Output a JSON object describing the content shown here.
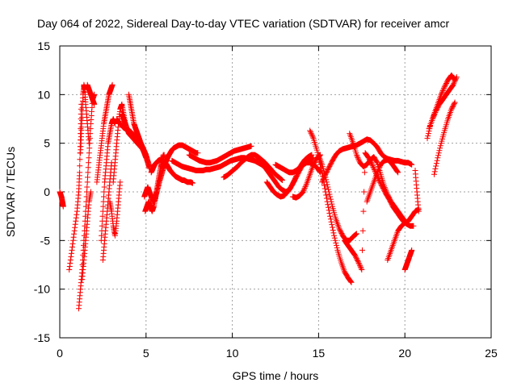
{
  "chart_data": {
    "type": "scatter",
    "title": "Day 064 of 2022, Sidereal Day-to-day VTEC variation (SDTVAR) for receiver amcr",
    "xlabel": "GPS time / hours",
    "ylabel": "SDTVAR / TECUs",
    "xlim": [
      0,
      25
    ],
    "ylim": [
      -15,
      15
    ],
    "xticks": [
      0,
      5,
      10,
      15,
      20,
      25
    ],
    "yticks": [
      -15,
      -10,
      -5,
      0,
      5,
      10,
      15
    ],
    "xtick_labels": [
      "0",
      "5",
      "10",
      "15",
      "20",
      "25"
    ],
    "ytick_labels": [
      "-15",
      "-10",
      "-5",
      "0",
      "5",
      "10",
      "15"
    ],
    "grid": true,
    "legend": "none",
    "marker": "+",
    "color": "#ff0000",
    "series": [
      {
        "name": "s01",
        "x": [
          0.0,
          0.1,
          0.15,
          0.2
        ],
        "y": [
          0.0,
          -0.5,
          -1.0,
          -1.5
        ]
      },
      {
        "name": "s02",
        "x": [
          0.55,
          0.7,
          0.85,
          1.0,
          1.1,
          1.15,
          1.2,
          1.25
        ],
        "y": [
          -8.0,
          -6.0,
          -4.0,
          -2.0,
          0.0,
          2.0,
          6.0,
          9.0
        ]
      },
      {
        "name": "s03",
        "x": [
          1.1,
          1.2,
          1.3,
          1.4,
          1.5,
          1.6,
          1.7,
          1.8,
          1.9,
          2.0
        ],
        "y": [
          -12.0,
          -10.0,
          -8.0,
          -5.0,
          -2.0,
          1.0,
          4.0,
          7.0,
          9.5,
          10.0
        ]
      },
      {
        "name": "s04",
        "x": [
          1.2,
          1.25,
          1.3,
          1.35,
          1.4,
          1.45,
          1.5,
          1.6,
          1.7
        ],
        "y": [
          4.0,
          6.0,
          8.0,
          10.0,
          11.0,
          10.5,
          9.0,
          7.0,
          5.0
        ]
      },
      {
        "name": "s05",
        "x": [
          1.3,
          1.4,
          1.5,
          1.6,
          1.7,
          1.8
        ],
        "y": [
          -9.0,
          -7.0,
          -5.0,
          -3.0,
          -1.0,
          0.0
        ]
      },
      {
        "name": "s06",
        "x": [
          1.6,
          1.7,
          1.8,
          1.9,
          2.0
        ],
        "y": [
          11.0,
          10.5,
          10.0,
          9.5,
          9.0
        ]
      },
      {
        "name": "s07",
        "x": [
          2.15,
          2.25,
          2.35,
          2.45,
          2.55,
          2.65,
          2.75,
          2.85,
          2.95,
          3.05
        ],
        "y": [
          1.0,
          2.5,
          4.0,
          5.5,
          7.0,
          8.0,
          9.0,
          10.0,
          10.5,
          11.0
        ]
      },
      {
        "name": "s08",
        "x": [
          2.4,
          2.5,
          2.6,
          2.7,
          2.8,
          2.9,
          3.0,
          3.1,
          3.2
        ],
        "y": [
          -5.0,
          -2.0,
          1.0,
          3.0,
          5.0,
          6.0,
          7.0,
          7.5,
          7.0
        ]
      },
      {
        "name": "s09",
        "x": [
          2.5,
          2.6,
          2.7,
          2.8,
          2.9,
          3.0
        ],
        "y": [
          -7.0,
          -5.0,
          -3.0,
          -1.0,
          1.0,
          3.0
        ]
      },
      {
        "name": "s10",
        "x": [
          2.9,
          3.0,
          3.1,
          3.2,
          3.3,
          3.4,
          3.5
        ],
        "y": [
          -1.0,
          -2.0,
          -3.5,
          -4.5,
          -3.0,
          -1.0,
          1.0
        ]
      },
      {
        "name": "s11",
        "x": [
          3.1,
          3.2,
          3.3,
          3.4,
          3.5,
          3.6,
          3.7,
          3.8
        ],
        "y": [
          1.0,
          3.0,
          5.0,
          7.0,
          8.5,
          9.0,
          8.0,
          7.0
        ]
      },
      {
        "name": "s12",
        "x": [
          3.3,
          3.4,
          3.5,
          3.6,
          3.7,
          3.8,
          3.9,
          4.0,
          4.1,
          4.2,
          4.3,
          4.4,
          4.5,
          4.6,
          4.7,
          4.8,
          4.9,
          5.0,
          5.1,
          5.2
        ],
        "y": [
          7.5,
          7.2,
          7.0,
          6.8,
          6.6,
          6.5,
          6.4,
          6.3,
          6.2,
          6.0,
          5.8,
          5.6,
          5.4,
          5.2,
          5.0,
          4.6,
          4.2,
          3.8,
          3.2,
          2.6
        ]
      },
      {
        "name": "s13",
        "x": [
          3.6,
          3.7,
          3.8,
          3.9,
          4.0,
          4.1,
          4.2,
          4.3,
          4.4,
          4.5,
          4.6,
          4.7,
          4.8,
          4.9,
          5.0,
          5.1,
          5.2
        ],
        "y": [
          8.0,
          7.5,
          7.0,
          6.5,
          6.0,
          5.8,
          5.6,
          5.4,
          5.2,
          5.0,
          4.8,
          4.6,
          4.4,
          4.0,
          3.6,
          3.0,
          2.4
        ]
      },
      {
        "name": "s14",
        "x": [
          4.0,
          4.1,
          4.2,
          4.3,
          4.4,
          4.5,
          4.6,
          4.7,
          4.8,
          4.9,
          5.0
        ],
        "y": [
          10.0,
          9.0,
          8.0,
          7.0,
          6.5,
          6.0,
          5.5,
          5.0,
          4.5,
          4.0,
          3.5
        ]
      },
      {
        "name": "s15",
        "x": [
          4.9,
          5.0,
          5.1,
          5.2,
          5.3,
          5.4,
          5.5,
          5.6,
          5.7,
          5.8,
          5.9,
          6.0
        ],
        "y": [
          -0.5,
          0.0,
          0.5,
          0.0,
          -0.5,
          -1.0,
          -0.8,
          0.0,
          1.0,
          2.0,
          3.0,
          3.8
        ]
      },
      {
        "name": "s16",
        "x": [
          4.95,
          5.05,
          5.15,
          5.25,
          5.35,
          5.45,
          5.55,
          5.65,
          5.75,
          5.85,
          5.95,
          6.05
        ],
        "y": [
          -2.0,
          -1.5,
          -1.0,
          -1.5,
          -2.0,
          -1.5,
          -0.5,
          0.5,
          1.5,
          2.5,
          3.2,
          3.8
        ]
      },
      {
        "name": "s17",
        "x": [
          5.5,
          5.6,
          5.7,
          5.8,
          5.9,
          6.0,
          6.1,
          6.2,
          6.3,
          6.4,
          6.5,
          6.6,
          6.7,
          6.8,
          6.9,
          7.0,
          7.1,
          7.2,
          7.3,
          7.4,
          7.5,
          7.6,
          7.7,
          7.8,
          7.9,
          8.0
        ],
        "y": [
          -1.0,
          -0.2,
          0.5,
          1.2,
          1.8,
          2.4,
          2.9,
          3.3,
          3.7,
          4.0,
          4.3,
          4.5,
          4.6,
          4.7,
          4.8,
          4.8,
          4.8,
          4.7,
          4.6,
          4.5,
          4.4,
          4.3,
          4.2,
          4.1,
          4.0,
          4.0
        ]
      },
      {
        "name": "s18",
        "x": [
          5.3,
          5.4,
          5.5,
          5.6,
          5.7,
          5.8,
          5.9,
          6.0,
          6.1,
          6.2,
          6.3,
          6.4,
          6.5,
          6.6,
          6.7,
          6.8,
          6.9,
          7.0,
          7.1,
          7.2,
          7.3,
          7.4,
          7.5,
          7.6,
          7.7
        ],
        "y": [
          2.0,
          2.4,
          2.8,
          3.0,
          3.2,
          3.3,
          3.3,
          3.2,
          3.0,
          2.8,
          2.5,
          2.2,
          2.0,
          1.8,
          1.6,
          1.5,
          1.4,
          1.3,
          1.2,
          1.2,
          1.1,
          1.0,
          1.0,
          1.0,
          0.9
        ]
      },
      {
        "name": "s19",
        "x": [
          6.5,
          6.7,
          6.9,
          7.1,
          7.3,
          7.5,
          7.7,
          7.9,
          8.1,
          8.3,
          8.5,
          8.7,
          8.9,
          9.1,
          9.3,
          9.5,
          9.7,
          9.9,
          10.1,
          10.3,
          10.5,
          10.7,
          10.9,
          11.1,
          11.3,
          11.5,
          11.7,
          11.9
        ],
        "y": [
          3.2,
          3.0,
          2.8,
          2.6,
          2.5,
          2.4,
          2.3,
          2.2,
          2.2,
          2.2,
          2.3,
          2.3,
          2.4,
          2.5,
          2.6,
          2.8,
          3.0,
          3.2,
          3.3,
          3.4,
          3.5,
          3.5,
          3.4,
          3.3,
          3.2,
          3.0,
          2.8,
          2.5
        ]
      },
      {
        "name": "s20",
        "x": [
          7.5,
          7.7,
          7.9,
          8.1,
          8.3,
          8.5,
          8.7,
          8.9,
          9.1,
          9.3,
          9.5,
          9.7,
          9.9,
          10.1,
          10.3,
          10.5,
          10.7,
          10.9,
          11.1
        ],
        "y": [
          3.8,
          3.6,
          3.4,
          3.2,
          3.1,
          3.0,
          3.0,
          3.1,
          3.2,
          3.4,
          3.6,
          3.8,
          4.0,
          4.2,
          4.3,
          4.4,
          4.5,
          4.6,
          4.7
        ]
      },
      {
        "name": "s21",
        "x": [
          9.5,
          9.7,
          9.9,
          10.1,
          10.3,
          10.5,
          10.7,
          10.9,
          11.1,
          11.3,
          11.5,
          11.7,
          11.9,
          12.1,
          12.3,
          12.5,
          12.7,
          12.9
        ],
        "y": [
          1.5,
          1.7,
          2.0,
          2.3,
          2.6,
          3.0,
          3.3,
          3.6,
          3.8,
          3.8,
          3.6,
          3.3,
          3.0,
          2.6,
          2.2,
          1.8,
          1.5,
          1.2
        ]
      },
      {
        "name": "s22",
        "x": [
          11.5,
          11.7,
          11.9,
          12.1,
          12.3,
          12.5,
          12.7,
          12.9,
          13.1,
          13.3,
          13.5,
          13.7,
          13.9,
          14.1,
          14.3,
          14.5,
          14.7
        ],
        "y": [
          3.5,
          3.0,
          2.5,
          2.0,
          1.5,
          1.0,
          0.5,
          0.2,
          0.0,
          0.2,
          0.8,
          1.5,
          2.2,
          2.8,
          3.2,
          3.4,
          3.5
        ]
      },
      {
        "name": "s23",
        "x": [
          12.0,
          12.2,
          12.4,
          12.6,
          12.8,
          13.0,
          13.2,
          13.4,
          13.6,
          13.8,
          14.0,
          14.2,
          14.4,
          14.6
        ],
        "y": [
          1.0,
          0.5,
          0.0,
          -0.3,
          -0.5,
          -0.4,
          0.0,
          0.5,
          1.2,
          2.0,
          2.8,
          3.3,
          3.6,
          3.8
        ]
      },
      {
        "name": "s24",
        "x": [
          12.5,
          12.7,
          12.9,
          13.1,
          13.3,
          13.5,
          13.7,
          13.9,
          14.1,
          14.3,
          14.5,
          14.7,
          14.9,
          15.1
        ],
        "y": [
          2.8,
          2.6,
          2.4,
          2.2,
          2.0,
          2.0,
          2.2,
          2.5,
          2.8,
          3.0,
          3.0,
          2.8,
          2.5,
          2.0
        ]
      },
      {
        "name": "s25",
        "x": [
          13.5,
          13.7,
          13.9,
          14.1,
          14.3,
          14.5,
          14.7,
          14.9,
          15.1
        ],
        "y": [
          -0.5,
          -0.6,
          -0.4,
          0.0,
          0.8,
          1.8,
          2.8,
          3.5,
          3.8
        ]
      },
      {
        "name": "s26",
        "x": [
          14.5,
          14.7,
          14.9,
          15.1,
          15.3,
          15.5,
          15.7,
          15.9,
          16.1,
          16.3,
          16.5,
          16.7,
          16.9
        ],
        "y": [
          6.3,
          5.5,
          4.3,
          2.8,
          1.0,
          -1.0,
          -2.8,
          -4.5,
          -6.0,
          -7.2,
          -8.2,
          -8.8,
          -9.3
        ]
      },
      {
        "name": "s27",
        "x": [
          15.0,
          15.2,
          15.4,
          15.6,
          15.8,
          16.0,
          16.2,
          16.4,
          16.6,
          16.8,
          17.0,
          17.2
        ],
        "y": [
          3.8,
          2.8,
          1.5,
          0.0,
          -1.5,
          -2.8,
          -3.8,
          -4.5,
          -5.0,
          -5.0,
          -4.6,
          -4.3
        ]
      },
      {
        "name": "s28",
        "x": [
          15.2,
          15.4,
          15.6,
          15.8,
          16.0,
          16.2,
          16.4,
          16.6,
          16.8,
          17.0,
          17.2,
          17.4,
          17.6,
          17.8,
          18.0,
          18.2,
          18.4,
          18.6,
          18.8,
          19.0,
          19.2,
          19.4,
          19.6,
          19.8,
          20.0,
          20.2,
          20.4
        ],
        "y": [
          1.0,
          1.8,
          2.5,
          3.2,
          3.8,
          4.2,
          4.4,
          4.5,
          4.6,
          4.7,
          4.8,
          5.0,
          5.2,
          5.4,
          5.3,
          5.0,
          4.6,
          4.0,
          3.6,
          3.4,
          3.3,
          3.2,
          3.2,
          3.1,
          3.0,
          3.0,
          2.8
        ]
      },
      {
        "name": "s29",
        "x": [
          16.5,
          16.7,
          16.9,
          17.1,
          17.3,
          17.5,
          17.7,
          17.9,
          18.1,
          18.3,
          18.5,
          18.7,
          18.9,
          19.1,
          19.3,
          19.5,
          19.7,
          19.9,
          20.1,
          20.3,
          20.5
        ],
        "y": [
          -5.0,
          -5.5,
          -6.0,
          -6.5,
          -7.2,
          -8.0,
          4.0,
          3.5,
          2.8,
          2.0,
          1.2,
          0.5,
          -0.2,
          -0.8,
          -1.5,
          -2.0,
          -2.5,
          -3.0,
          -3.3,
          -3.5,
          -3.5
        ]
      },
      {
        "name": "s30",
        "x": [
          16.8,
          17.0,
          17.2,
          17.4,
          17.6,
          17.8,
          18.0,
          18.2,
          18.4,
          18.6,
          18.8,
          19.0,
          19.2,
          19.4,
          19.6,
          19.8,
          20.0
        ],
        "y": [
          6.0,
          5.0,
          3.8,
          3.0,
          2.6,
          2.8,
          3.3,
          3.6,
          3.0,
          1.8,
          0.6,
          -0.3,
          -1.0,
          -1.5,
          -2.0,
          -2.5,
          -3.0
        ]
      },
      {
        "name": "s31",
        "x": [
          17.8,
          18.0,
          18.2,
          18.4,
          18.6,
          18.8,
          19.0,
          19.2,
          19.4,
          19.6
        ],
        "y": [
          -1.0,
          0.0,
          1.0,
          2.0,
          2.8,
          3.2,
          3.3,
          3.0,
          2.5,
          2.0
        ]
      },
      {
        "name": "s32",
        "x": [
          19.0,
          19.2,
          19.4,
          19.6,
          19.8,
          20.0,
          20.2,
          20.4,
          20.6,
          20.8
        ],
        "y": [
          -7.0,
          -6.0,
          -5.0,
          -4.0,
          -3.5,
          -3.2,
          -3.0,
          -2.5,
          -2.0,
          -1.8
        ]
      },
      {
        "name": "s33",
        "x": [
          20.0,
          20.1,
          20.2,
          20.3,
          20.4
        ],
        "y": [
          -8.0,
          -7.5,
          -7.0,
          -6.5,
          -6.0
        ]
      },
      {
        "name": "s34",
        "x": [
          20.6,
          20.7,
          20.8
        ],
        "y": [
          2.2,
          0.0,
          -2.0
        ]
      },
      {
        "name": "s35",
        "x": [
          21.3,
          21.5,
          21.7,
          21.9,
          22.1,
          22.3,
          22.5,
          22.7,
          22.9
        ],
        "y": [
          5.5,
          7.0,
          8.0,
          9.0,
          10.0,
          10.8,
          11.5,
          12.0,
          11.5
        ]
      },
      {
        "name": "s36",
        "x": [
          21.4,
          21.6,
          21.8,
          22.0,
          22.2,
          22.4,
          22.6,
          22.8,
          23.0
        ],
        "y": [
          6.5,
          7.5,
          8.3,
          9.0,
          9.5,
          10.0,
          10.5,
          11.0,
          11.8
        ]
      },
      {
        "name": "s37",
        "x": [
          21.7,
          21.9,
          22.1,
          22.3,
          22.5,
          22.7,
          22.9
        ],
        "y": [
          1.8,
          3.5,
          5.0,
          6.3,
          7.5,
          8.5,
          9.2
        ]
      }
    ]
  }
}
